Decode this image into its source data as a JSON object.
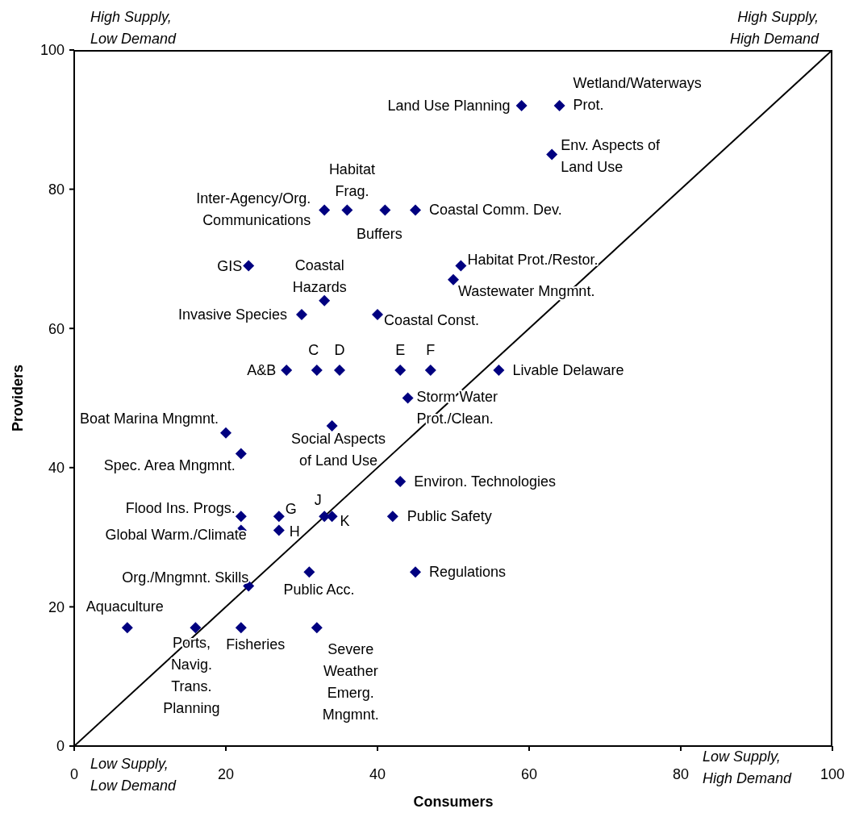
{
  "chart_data": {
    "type": "scatter",
    "xlabel": "Consumers",
    "ylabel": "Providers",
    "annotations": [
      "High Supply,\nLow Demand",
      "High Supply,\nHigh Demand",
      "Low Supply,\nLow Demand",
      "Low Supply,\nHigh Demand"
    ],
    "xlim": [
      0,
      100
    ],
    "ylim": [
      0,
      100
    ],
    "xticks": [
      0,
      20,
      40,
      60,
      80,
      100
    ],
    "yticks": [
      0,
      20,
      40,
      60,
      80,
      100
    ],
    "marker": "diamond",
    "series": [
      {
        "type": "scatter",
        "color": "#000080",
        "x": [
          59,
          64,
          63,
          33,
          36,
          41,
          45,
          23,
          33,
          30,
          40,
          51,
          50,
          28,
          32,
          35,
          43,
          47,
          56,
          44,
          34,
          20,
          22,
          43,
          22,
          27,
          33,
          34,
          42,
          22,
          27,
          23,
          31,
          45,
          7,
          16,
          22,
          32
        ],
        "values": [
          92,
          92,
          85,
          77,
          77,
          77,
          77,
          69,
          64,
          62,
          62,
          69,
          67,
          54,
          54,
          54,
          54,
          54,
          54,
          50,
          46,
          45,
          42,
          38,
          33,
          33,
          33,
          33,
          33,
          31,
          31,
          23,
          25,
          25,
          17,
          17,
          17,
          17
        ],
        "value_labels": [
          "Land Use Planning",
          "Wetland/Waterways\nProt.",
          "Env. Aspects of\nLand Use",
          "Inter-Agency/Org.\nCommunications",
          "Habitat\nFrag.",
          "Buffers",
          "Coastal Comm. Dev.",
          "GIS",
          "Coastal\nHazards",
          "Invasive Species",
          "Coastal Const.",
          "Habitat Prot./Restor.",
          "Wastewater Mngmnt.",
          "A&B",
          "C",
          "D",
          "E",
          "F",
          "Livable Delaware",
          "Storm Water\nProt./Clean.",
          "Social Aspects\nof Land Use",
          "Boat Marina Mngmnt.",
          "Spec. Area Mngmnt.",
          "Environ. Technologies",
          "Flood Ins. Progs.",
          "G",
          "J",
          "K",
          "Public Safety",
          "Global Warm./Climate",
          "H",
          "Org./Mngmnt. Skills",
          "Public Acc.",
          "Regulations",
          "Aquaculture",
          "Ports,\nNavig.\nTrans.\nPlanning",
          "Fisheries",
          "Severe\nWeather\nEmerg.\nMngmnt."
        ]
      },
      {
        "type": "line",
        "color": "#000000",
        "x": [
          0,
          100
        ],
        "values": [
          0,
          100
        ],
        "marker": "none",
        "line_style": "solid"
      }
    ]
  }
}
